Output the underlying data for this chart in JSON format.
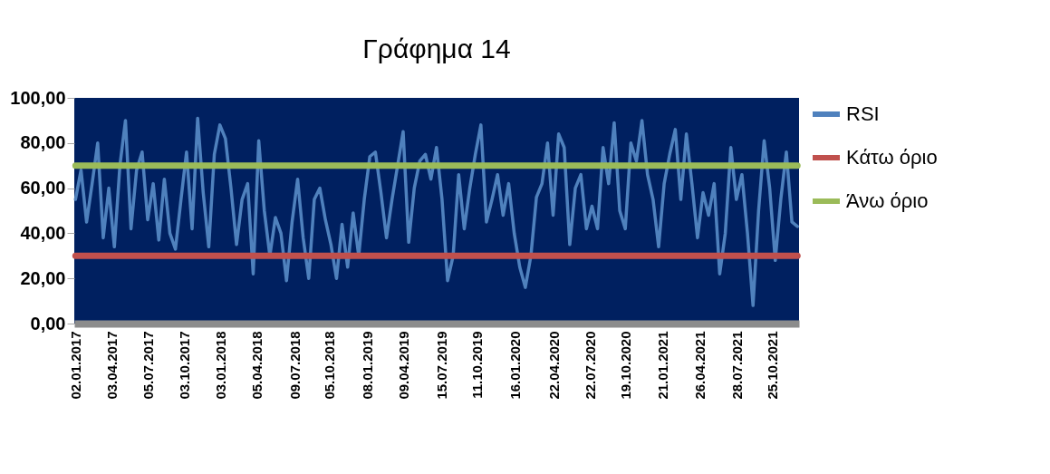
{
  "chart_data": {
    "type": "line",
    "title": "Γράφημα 14",
    "x": [
      "2017-01-02",
      "2017-01-16",
      "2017-01-30",
      "2017-02-13",
      "2017-02-27",
      "2017-03-13",
      "2017-03-27",
      "2017-04-10",
      "2017-04-24",
      "2017-05-08",
      "2017-05-22",
      "2017-06-05",
      "2017-06-19",
      "2017-07-03",
      "2017-07-17",
      "2017-07-31",
      "2017-08-14",
      "2017-08-28",
      "2017-09-11",
      "2017-09-25",
      "2017-10-09",
      "2017-10-23",
      "2017-11-06",
      "2017-11-20",
      "2017-12-04",
      "2017-12-18",
      "2018-01-01",
      "2018-01-15",
      "2018-01-29",
      "2018-02-12",
      "2018-02-26",
      "2018-03-12",
      "2018-03-26",
      "2018-04-09",
      "2018-04-23",
      "2018-05-07",
      "2018-05-21",
      "2018-06-04",
      "2018-06-18",
      "2018-07-02",
      "2018-07-16",
      "2018-07-30",
      "2018-08-13",
      "2018-08-27",
      "2018-09-10",
      "2018-09-24",
      "2018-10-08",
      "2018-10-22",
      "2018-11-05",
      "2018-11-19",
      "2018-12-03",
      "2018-12-17",
      "2018-12-31",
      "2019-01-14",
      "2019-01-28",
      "2019-02-11",
      "2019-02-25",
      "2019-03-11",
      "2019-03-25",
      "2019-04-08",
      "2019-04-22",
      "2019-05-06",
      "2019-05-20",
      "2019-06-03",
      "2019-06-17",
      "2019-07-01",
      "2019-07-15",
      "2019-07-29",
      "2019-08-12",
      "2019-08-26",
      "2019-09-09",
      "2019-09-23",
      "2019-10-07",
      "2019-10-21",
      "2019-11-04",
      "2019-11-18",
      "2019-12-02",
      "2019-12-16",
      "2019-12-30",
      "2020-01-13",
      "2020-01-27",
      "2020-02-10",
      "2020-02-24",
      "2020-03-09",
      "2020-03-23",
      "2020-04-06",
      "2020-04-20",
      "2020-05-04",
      "2020-05-18",
      "2020-06-01",
      "2020-06-15",
      "2020-06-29",
      "2020-07-13",
      "2020-07-27",
      "2020-08-10",
      "2020-08-24",
      "2020-09-07",
      "2020-09-21",
      "2020-10-05",
      "2020-10-19",
      "2020-11-02",
      "2020-11-16",
      "2020-11-30",
      "2020-12-14",
      "2020-12-28",
      "2021-01-11",
      "2021-01-25",
      "2021-02-08",
      "2021-02-22",
      "2021-03-08",
      "2021-03-22",
      "2021-04-05",
      "2021-04-19",
      "2021-05-03",
      "2021-05-17",
      "2021-05-31",
      "2021-06-14",
      "2021-06-28",
      "2021-07-12",
      "2021-07-26",
      "2021-08-09",
      "2021-08-23",
      "2021-09-06",
      "2021-09-20",
      "2021-10-04",
      "2021-10-18",
      "2021-11-01",
      "2021-11-15",
      "2021-11-29",
      "2021-12-13",
      "2021-12-27"
    ],
    "series": [
      {
        "name": "RSI",
        "color": "#4f81bd",
        "values": [
          55,
          68,
          45,
          62,
          80,
          38,
          60,
          34,
          70,
          90,
          42,
          68,
          76,
          46,
          62,
          37,
          64,
          40,
          33,
          55,
          76,
          42,
          91,
          58,
          34,
          75,
          88,
          82,
          60,
          35,
          55,
          62,
          22,
          81,
          50,
          30,
          47,
          40,
          19,
          45,
          64,
          38,
          20,
          55,
          60,
          46,
          35,
          20,
          44,
          25,
          49,
          30,
          55,
          74,
          76,
          58,
          38,
          55,
          70,
          85,
          36,
          60,
          72,
          75,
          64,
          78,
          55,
          19,
          30,
          66,
          42,
          60,
          75,
          88,
          45,
          55,
          66,
          48,
          62,
          40,
          25,
          16,
          30,
          56,
          62,
          80,
          48,
          84,
          78,
          35,
          60,
          66,
          42,
          52,
          42,
          78,
          62,
          89,
          50,
          42,
          80,
          72,
          90,
          66,
          55,
          34,
          62,
          75,
          86,
          55,
          84,
          62,
          38,
          58,
          48,
          62,
          22,
          40,
          78,
          55,
          66,
          40,
          8,
          50,
          81,
          60,
          28,
          55,
          76,
          45,
          43
        ]
      },
      {
        "name": "Κάτω όριο",
        "color": "#c0504d",
        "x": [
          "2017-01-02",
          "2021-12-27"
        ],
        "values": [
          30,
          30
        ]
      },
      {
        "name": "Άνω όριο",
        "color": "#9bbb59",
        "x": [
          "2017-01-02",
          "2021-12-27"
        ],
        "values": [
          70,
          70
        ]
      }
    ],
    "xlim": [
      "2016-12-30",
      "2021-12-31"
    ],
    "xticks": [
      {
        "value": "2017-01-02",
        "label": "02.01.2017"
      },
      {
        "value": "2017-04-03",
        "label": "03.04.2017"
      },
      {
        "value": "2017-07-05",
        "label": "05.07.2017"
      },
      {
        "value": "2017-10-03",
        "label": "03.10.2017"
      },
      {
        "value": "2018-01-03",
        "label": "03.01.2018"
      },
      {
        "value": "2018-04-05",
        "label": "05.04.2018"
      },
      {
        "value": "2018-07-09",
        "label": "09.07.2018"
      },
      {
        "value": "2018-10-05",
        "label": "05.10.2018"
      },
      {
        "value": "2019-01-08",
        "label": "08.01.2019"
      },
      {
        "value": "2019-04-09",
        "label": "09.04.2019"
      },
      {
        "value": "2019-07-15",
        "label": "15.07.2019"
      },
      {
        "value": "2019-10-11",
        "label": "11.10.2019"
      },
      {
        "value": "2020-01-16",
        "label": "16.01.2020"
      },
      {
        "value": "2020-04-22",
        "label": "22.04.2020"
      },
      {
        "value": "2020-07-22",
        "label": "22.07.2020"
      },
      {
        "value": "2020-10-19",
        "label": "19.10.2020"
      },
      {
        "value": "2021-01-21",
        "label": "21.01.2021"
      },
      {
        "value": "2021-04-26",
        "label": "26.04.2021"
      },
      {
        "value": "2021-07-28",
        "label": "28.07.2021"
      },
      {
        "value": "2021-10-25",
        "label": "25.10.2021"
      }
    ],
    "ylim": [
      0,
      100
    ],
    "yticks": [
      {
        "value": 0,
        "label": "0,00"
      },
      {
        "value": 20,
        "label": "20,00"
      },
      {
        "value": 40,
        "label": "40,00"
      },
      {
        "value": 60,
        "label": "60,00"
      },
      {
        "value": 80,
        "label": "80,00"
      },
      {
        "value": 100,
        "label": "100,00"
      }
    ],
    "grid": false,
    "legend": "right",
    "marker": "none",
    "line_style": "solid"
  }
}
